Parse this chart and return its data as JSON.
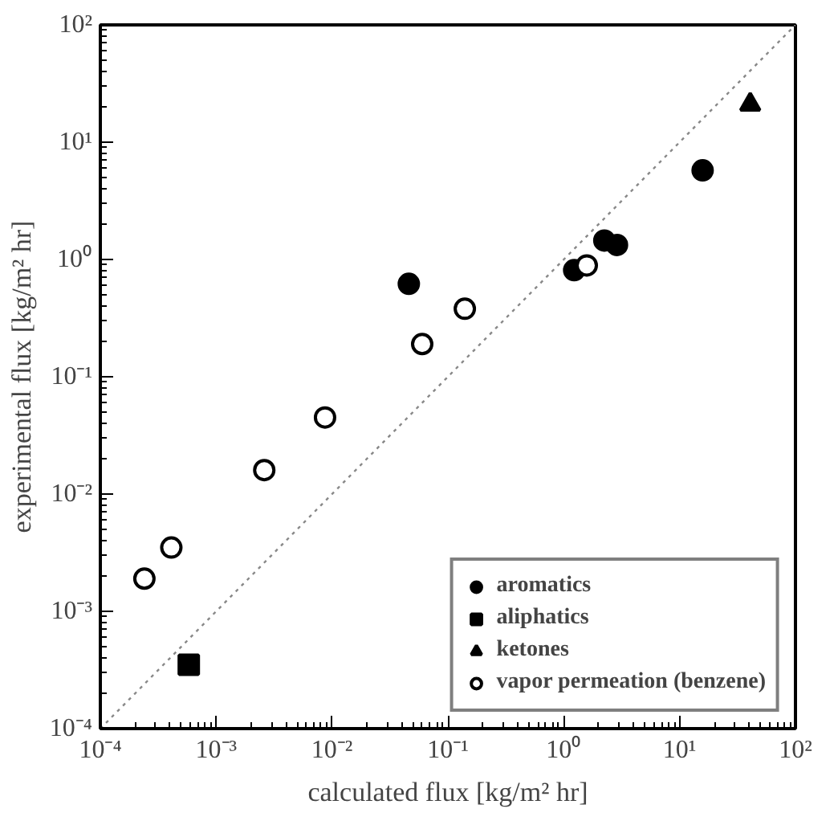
{
  "chart_data": {
    "type": "scatter",
    "xlabel": "calculated flux [kg/m² hr]",
    "ylabel": "experimental flux [kg/m² hr]",
    "log": "xy",
    "grid": false,
    "legend": "bottom right",
    "xlim": [
      0.0001,
      100
    ],
    "ylim": [
      0.0001,
      100
    ],
    "xticks": [
      {
        "value": 0.0001,
        "label": "10⁻⁴"
      },
      {
        "value": 0.001,
        "label": "10⁻³"
      },
      {
        "value": 0.01,
        "label": "10⁻²"
      },
      {
        "value": 0.1,
        "label": "10⁻¹"
      },
      {
        "value": 1,
        "label": "10⁰"
      },
      {
        "value": 10,
        "label": "10¹"
      },
      {
        "value": 100,
        "label": "10²"
      }
    ],
    "yticks": [
      {
        "value": 0.0001,
        "label": "10⁻⁴"
      },
      {
        "value": 0.001,
        "label": "10⁻³"
      },
      {
        "value": 0.01,
        "label": "10⁻²"
      },
      {
        "value": 0.1,
        "label": "10⁻¹"
      },
      {
        "value": 1,
        "label": "10⁰"
      },
      {
        "value": 10,
        "label": "10¹"
      },
      {
        "value": 100,
        "label": "10²"
      }
    ],
    "series": [
      {
        "type": "line",
        "line_style": "dotted",
        "marker": "none",
        "color": "#888888",
        "x": [
          0.0001,
          100
        ],
        "values": [
          0.0001,
          100
        ]
      },
      {
        "name": "aromatics",
        "marker": "circle",
        "color": "#000000",
        "x": [
          0.046,
          1.23,
          2.24,
          2.88,
          15.8
        ],
        "values": [
          0.62,
          0.81,
          1.45,
          1.33,
          5.75
        ]
      },
      {
        "name": "aliphatics",
        "marker": "square",
        "color": "#000000",
        "x": [
          0.00058
        ],
        "values": [
          0.00035
        ]
      },
      {
        "name": "ketones",
        "marker": "triangle",
        "color": "#000000",
        "x": [
          40.7
        ],
        "values": [
          21
        ]
      },
      {
        "name": "vapor permeation (benzene)",
        "marker": "circle_open",
        "color": "#000000",
        "x": [
          0.00024,
          0.00041,
          0.0026,
          0.0087,
          0.06,
          0.14,
          1.58
        ],
        "values": [
          0.0019,
          0.0035,
          0.016,
          0.045,
          0.19,
          0.38,
          0.89
        ]
      }
    ]
  }
}
